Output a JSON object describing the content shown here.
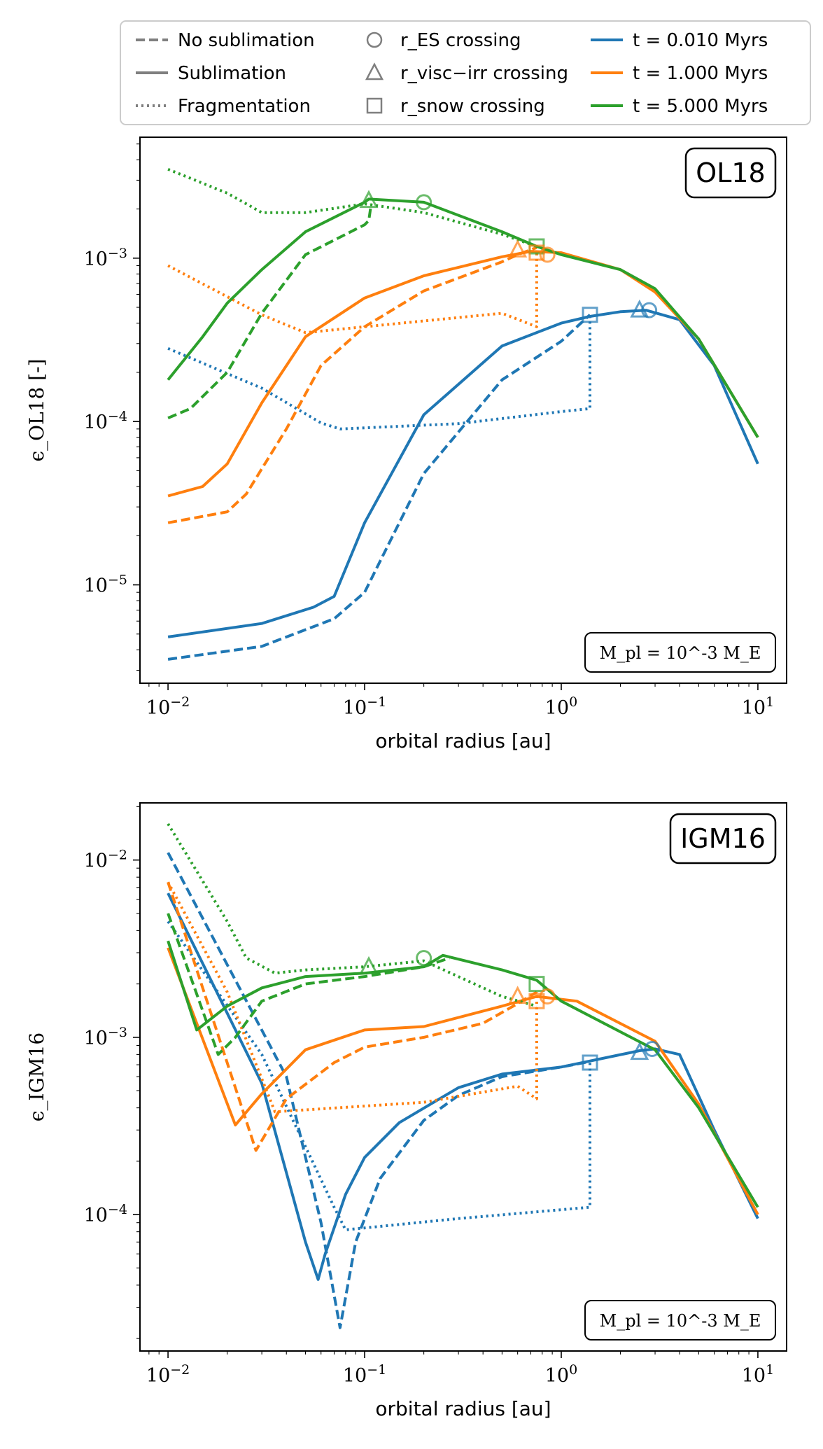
{
  "chart_data": [
    {
      "type": "line",
      "panel_tag": "OL18",
      "ylabel": "ϵ_OL18 [-]",
      "xlabel": "orbital radius [au]",
      "xscale": "log",
      "yscale": "log",
      "xlim": [
        0.0072,
        14
      ],
      "ylim": [
        2.5e-06,
        0.0055
      ],
      "xtick_labels": [
        "10^-2",
        "10^-1",
        "10^0",
        "10^1"
      ],
      "ytick_labels": [
        "10^-5",
        "10^-4",
        "10^-3"
      ],
      "annotation": "M_pl = 10^-3 M_E",
      "series": [
        {
          "color": "#1f77b4",
          "style": "solid",
          "x": [
            0.01,
            0.03,
            0.055,
            0.07,
            0.1,
            0.2,
            0.5,
            1.0,
            1.4,
            2.0,
            2.7,
            4.0,
            6.0,
            10.0
          ],
          "y": [
            4.8e-06,
            5.8e-06,
            7.3e-06,
            8.5e-06,
            2.4e-05,
            0.00011,
            0.00029,
            0.0004,
            0.00044,
            0.00047,
            0.00048,
            0.00042,
            0.00022,
            5.5e-05
          ]
        },
        {
          "color": "#1f77b4",
          "style": "dashed",
          "x": [
            0.01,
            0.03,
            0.07,
            0.1,
            0.2,
            0.5,
            1.0,
            1.4
          ],
          "y": [
            3.5e-06,
            4.2e-06,
            6.2e-06,
            9e-06,
            4.8e-05,
            0.00018,
            0.00031,
            0.00045
          ]
        },
        {
          "color": "#1f77b4",
          "style": "dotted",
          "x": [
            0.01,
            0.03,
            0.06,
            0.075,
            0.3,
            1.0,
            1.4,
            1.4
          ],
          "y": [
            0.00028,
            0.00016,
            9.8e-05,
            9e-05,
            9.7e-05,
            0.000115,
            0.00012,
            0.00045
          ]
        },
        {
          "color": "#ff7f0e",
          "style": "solid",
          "x": [
            0.01,
            0.015,
            0.02,
            0.03,
            0.05,
            0.1,
            0.2,
            0.5,
            0.7,
            1.0,
            2.0,
            3.0,
            5.0,
            10.0
          ],
          "y": [
            3.5e-05,
            4e-05,
            5.5e-05,
            0.00013,
            0.00033,
            0.00057,
            0.00078,
            0.00102,
            0.0011,
            0.00108,
            0.00085,
            0.00062,
            0.00032,
            8e-05
          ]
        },
        {
          "color": "#ff7f0e",
          "style": "dashed",
          "x": [
            0.01,
            0.02,
            0.025,
            0.04,
            0.06,
            0.1,
            0.2,
            0.5,
            0.6,
            0.75
          ],
          "y": [
            2.4e-05,
            2.8e-05,
            3.6e-05,
            9e-05,
            0.00022,
            0.00038,
            0.00063,
            0.00095,
            0.00105,
            0.00116
          ]
        },
        {
          "color": "#ff7f0e",
          "style": "dotted",
          "x": [
            0.01,
            0.03,
            0.05,
            0.1,
            0.5,
            0.75,
            0.75
          ],
          "y": [
            0.0009,
            0.00045,
            0.00035,
            0.00038,
            0.00046,
            0.00038,
            0.0011
          ]
        },
        {
          "color": "#2ca02c",
          "style": "solid",
          "x": [
            0.01,
            0.015,
            0.02,
            0.03,
            0.05,
            0.1,
            0.105,
            0.2,
            0.5,
            0.75,
            1.0,
            2.0,
            3.0,
            5.0,
            10.0
          ],
          "y": [
            0.00018,
            0.00033,
            0.00053,
            0.00085,
            0.00145,
            0.0022,
            0.0023,
            0.0022,
            0.00145,
            0.00118,
            0.00105,
            0.00085,
            0.00065,
            0.00032,
            8e-05
          ]
        },
        {
          "color": "#2ca02c",
          "style": "dashed",
          "x": [
            0.01,
            0.013,
            0.02,
            0.03,
            0.05,
            0.1,
            0.105,
            0.108
          ],
          "y": [
            0.000105,
            0.00012,
            0.0002,
            0.00046,
            0.00105,
            0.0016,
            0.0017,
            0.00215
          ]
        },
        {
          "color": "#2ca02c",
          "style": "dotted",
          "x": [
            0.01,
            0.02,
            0.03,
            0.05,
            0.1,
            0.2,
            0.5,
            0.75
          ],
          "y": [
            0.0035,
            0.0025,
            0.0019,
            0.0019,
            0.00215,
            0.0019,
            0.0014,
            0.00118
          ]
        }
      ],
      "markers": [
        {
          "shape": "circle",
          "color": "#2ca02c",
          "x": 0.2,
          "y": 0.0022
        },
        {
          "shape": "triangle",
          "color": "#2ca02c",
          "x": 0.105,
          "y": 0.00225
        },
        {
          "shape": "square",
          "color": "#2ca02c",
          "x": 0.75,
          "y": 0.00118
        },
        {
          "shape": "triangle",
          "color": "#ff7f0e",
          "x": 0.6,
          "y": 0.00112
        },
        {
          "shape": "circle",
          "color": "#ff7f0e",
          "x": 0.85,
          "y": 0.00105
        },
        {
          "shape": "square",
          "color": "#ff7f0e",
          "x": 0.75,
          "y": 0.00108
        },
        {
          "shape": "square",
          "color": "#1f77b4",
          "x": 1.4,
          "y": 0.00045
        },
        {
          "shape": "triangle",
          "color": "#1f77b4",
          "x": 2.5,
          "y": 0.00048
        },
        {
          "shape": "circle",
          "color": "#1f77b4",
          "x": 2.8,
          "y": 0.00048
        }
      ]
    },
    {
      "type": "line",
      "panel_tag": "IGM16",
      "ylabel": "ϵ_IGM16",
      "xlabel": "orbital radius [au]",
      "xscale": "log",
      "yscale": "log",
      "xlim": [
        0.0072,
        14
      ],
      "ylim": [
        1.7e-05,
        0.021
      ],
      "xtick_labels": [
        "10^-2",
        "10^-1",
        "10^0",
        "10^1"
      ],
      "ytick_labels": [
        "10^-4",
        "10^-3",
        "10^-2"
      ],
      "annotation": "M_pl = 10^-3 M_E",
      "series": [
        {
          "color": "#1f77b4",
          "style": "solid",
          "x": [
            0.01,
            0.03,
            0.05,
            0.058,
            0.063,
            0.08,
            0.1,
            0.15,
            0.3,
            0.5,
            1.0,
            2.5,
            3.0,
            4.0,
            6.0,
            10.0
          ],
          "y": [
            0.0065,
            0.00055,
            7e-05,
            4.3e-05,
            6e-05,
            0.00013,
            0.00021,
            0.00033,
            0.00052,
            0.00062,
            0.00068,
            0.00084,
            0.00086,
            0.0008,
            0.0003,
            9.5e-05
          ]
        },
        {
          "color": "#1f77b4",
          "style": "dashed",
          "x": [
            0.01,
            0.04,
            0.06,
            0.075,
            0.09,
            0.12,
            0.2,
            0.3,
            0.5,
            1.0,
            1.4
          ],
          "y": [
            0.011,
            0.0006,
            9e-05,
            2.3e-05,
            7e-05,
            0.00016,
            0.00034,
            0.00047,
            0.0006,
            0.00068,
            0.00073
          ]
        },
        {
          "color": "#1f77b4",
          "style": "dotted",
          "x": [
            0.01,
            0.03,
            0.07,
            0.08,
            0.3,
            1.4,
            1.4
          ],
          "y": [
            0.0045,
            0.0008,
            0.00011,
            8.2e-05,
            9.5e-05,
            0.00011,
            0.00072
          ]
        },
        {
          "color": "#ff7f0e",
          "style": "solid",
          "x": [
            0.01,
            0.022,
            0.03,
            0.05,
            0.1,
            0.2,
            0.5,
            0.75,
            1.2,
            3.0,
            5.0,
            10.0
          ],
          "y": [
            0.0032,
            0.00032,
            0.00048,
            0.00085,
            0.0011,
            0.00115,
            0.0015,
            0.0017,
            0.0016,
            0.00095,
            0.00042,
            0.0001
          ]
        },
        {
          "color": "#ff7f0e",
          "style": "dashed",
          "x": [
            0.01,
            0.028,
            0.04,
            0.07,
            0.1,
            0.2,
            0.4,
            0.6,
            0.75
          ],
          "y": [
            0.0075,
            0.00023,
            0.00045,
            0.00072,
            0.00088,
            0.001,
            0.0012,
            0.00155,
            0.0018
          ]
        },
        {
          "color": "#ff7f0e",
          "style": "dotted",
          "x": [
            0.01,
            0.02,
            0.035,
            0.2,
            0.6,
            0.75,
            0.75
          ],
          "y": [
            0.0075,
            0.0018,
            0.00038,
            0.00043,
            0.00053,
            0.00045,
            0.0018
          ]
        },
        {
          "color": "#2ca02c",
          "style": "solid",
          "x": [
            0.01,
            0.014,
            0.02,
            0.03,
            0.05,
            0.1,
            0.2,
            0.25,
            0.5,
            0.75,
            1.0,
            3.0,
            5.0,
            10.0
          ],
          "y": [
            0.0035,
            0.0011,
            0.0015,
            0.0019,
            0.0022,
            0.0023,
            0.0025,
            0.0029,
            0.0024,
            0.0021,
            0.0016,
            0.00085,
            0.0004,
            0.00011
          ]
        },
        {
          "color": "#2ca02c",
          "style": "dashed",
          "x": [
            0.01,
            0.018,
            0.022,
            0.03,
            0.05,
            0.1,
            0.2,
            0.27
          ],
          "y": [
            0.005,
            0.0008,
            0.001,
            0.0016,
            0.002,
            0.0022,
            0.0025,
            0.0028
          ]
        },
        {
          "color": "#2ca02c",
          "style": "dotted",
          "x": [
            0.01,
            0.02,
            0.025,
            0.035,
            0.05,
            0.1,
            0.2,
            0.5,
            0.75
          ],
          "y": [
            0.016,
            0.0045,
            0.0028,
            0.0023,
            0.0024,
            0.0025,
            0.0027,
            0.0017,
            0.0015
          ]
        }
      ],
      "markers": [
        {
          "shape": "circle",
          "color": "#2ca02c",
          "x": 0.2,
          "y": 0.0028
        },
        {
          "shape": "triangle",
          "color": "#2ca02c",
          "x": 0.105,
          "y": 0.0025
        },
        {
          "shape": "square",
          "color": "#2ca02c",
          "x": 0.75,
          "y": 0.002
        },
        {
          "shape": "triangle",
          "color": "#ff7f0e",
          "x": 0.6,
          "y": 0.0017
        },
        {
          "shape": "circle",
          "color": "#ff7f0e",
          "x": 0.85,
          "y": 0.0017
        },
        {
          "shape": "square",
          "color": "#ff7f0e",
          "x": 0.75,
          "y": 0.0016
        },
        {
          "shape": "square",
          "color": "#1f77b4",
          "x": 1.4,
          "y": 0.00072
        },
        {
          "shape": "triangle",
          "color": "#1f77b4",
          "x": 2.5,
          "y": 0.00082
        },
        {
          "shape": "circle",
          "color": "#1f77b4",
          "x": 2.9,
          "y": 0.00086
        }
      ]
    }
  ],
  "legend": {
    "placement": "top-center",
    "entries": [
      {
        "label": "No sublimation",
        "kind": "line",
        "style": "dashed",
        "color": "#7f7f7f"
      },
      {
        "label": "Sublimation",
        "kind": "line",
        "style": "solid",
        "color": "#7f7f7f"
      },
      {
        "label": "Fragmentation",
        "kind": "line",
        "style": "dotted",
        "color": "#7f7f7f"
      },
      {
        "label": "r_ES crossing",
        "kind": "marker",
        "shape": "circle",
        "color": "#7f7f7f"
      },
      {
        "label": "r_visc−irr crossing",
        "kind": "marker",
        "shape": "triangle",
        "color": "#7f7f7f"
      },
      {
        "label": "r_snow crossing",
        "kind": "marker",
        "shape": "square",
        "color": "#7f7f7f"
      },
      {
        "label": "t = 0.010 Myrs",
        "kind": "line",
        "style": "solid",
        "color": "#1f77b4"
      },
      {
        "label": "t = 1.000 Myrs",
        "kind": "line",
        "style": "solid",
        "color": "#ff7f0e"
      },
      {
        "label": "t = 5.000 Myrs",
        "kind": "line",
        "style": "solid",
        "color": "#2ca02c"
      }
    ]
  }
}
